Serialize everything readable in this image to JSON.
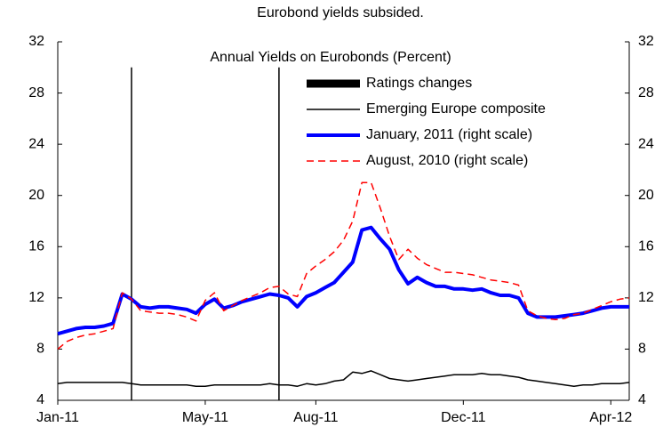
{
  "chart_data": {
    "type": "line",
    "title": "Eurobond yields subsided.",
    "subtitle": "Annual Yields on Eurobonds (Percent)",
    "categories": [
      "Jan-11",
      null,
      null,
      null,
      null,
      null,
      null,
      null,
      null,
      null,
      null,
      null,
      null,
      null,
      null,
      null,
      "May-11",
      null,
      null,
      null,
      null,
      null,
      null,
      null,
      null,
      null,
      null,
      null,
      "Aug-11",
      null,
      null,
      null,
      null,
      null,
      null,
      null,
      null,
      null,
      null,
      null,
      null,
      null,
      null,
      null,
      "Dec-11",
      null,
      null,
      null,
      null,
      null,
      null,
      null,
      null,
      null,
      null,
      null,
      null,
      null,
      null,
      null,
      "Apr-12",
      null,
      null
    ],
    "ylim": [
      4,
      32
    ],
    "yticks": [
      4,
      8,
      12,
      16,
      20,
      24,
      28,
      32
    ],
    "y2lim": [
      4,
      32
    ],
    "y2ticks": [
      4,
      8,
      12,
      16,
      20,
      24,
      28,
      32
    ],
    "series": [
      {
        "name": "Ratings changes",
        "type": "bar",
        "color": "#000000",
        "values": [
          null,
          null,
          null,
          null,
          null,
          null,
          null,
          null,
          30,
          null,
          null,
          null,
          null,
          null,
          null,
          null,
          null,
          null,
          null,
          null,
          null,
          null,
          null,
          null,
          30,
          null,
          null,
          null,
          null,
          null,
          null,
          null,
          null,
          null,
          null,
          null,
          null,
          null,
          null,
          null,
          null,
          null,
          null,
          null,
          null,
          null,
          null,
          null,
          null,
          null,
          null,
          null,
          null,
          null,
          null,
          null,
          null,
          null,
          null,
          null,
          null,
          null,
          null
        ]
      },
      {
        "name": "Emerging Europe composite",
        "type": "line",
        "color": "#000000",
        "width": 1.5,
        "values": [
          5.3,
          5.4,
          5.4,
          5.4,
          5.4,
          5.4,
          5.4,
          5.4,
          5.3,
          5.2,
          5.2,
          5.2,
          5.2,
          5.2,
          5.2,
          5.1,
          5.1,
          5.2,
          5.2,
          5.2,
          5.2,
          5.2,
          5.2,
          5.3,
          5.2,
          5.2,
          5.1,
          5.3,
          5.2,
          5.3,
          5.5,
          5.6,
          6.2,
          6.1,
          6.3,
          6.0,
          5.7,
          5.6,
          5.5,
          5.6,
          5.7,
          5.8,
          5.9,
          6.0,
          6.0,
          6.0,
          6.1,
          6.0,
          6.0,
          5.9,
          5.8,
          5.6,
          5.5,
          5.4,
          5.3,
          5.2,
          5.1,
          5.2,
          5.2,
          5.3,
          5.3,
          5.3,
          5.4
        ]
      },
      {
        "name": "January, 2011 (right scale)",
        "type": "line",
        "axis": "y2",
        "color": "#0000ff",
        "width": 4,
        "values": [
          9.2,
          9.4,
          9.6,
          9.7,
          9.7,
          9.8,
          10.0,
          12.3,
          11.9,
          11.3,
          11.2,
          11.3,
          11.3,
          11.2,
          11.1,
          10.8,
          11.5,
          11.9,
          11.2,
          11.4,
          11.7,
          11.9,
          12.1,
          12.3,
          12.2,
          12.0,
          11.3,
          12.1,
          12.4,
          12.8,
          13.2,
          14.0,
          14.8,
          17.3,
          17.5,
          16.6,
          15.8,
          14.2,
          13.1,
          13.6,
          13.2,
          12.9,
          12.9,
          12.7,
          12.7,
          12.6,
          12.7,
          12.4,
          12.2,
          12.2,
          12.0,
          10.8,
          10.5,
          10.5,
          10.5,
          10.6,
          10.7,
          10.8,
          11.0,
          11.2,
          11.3,
          11.3,
          11.3
        ]
      },
      {
        "name": "August, 2010 (right scale)",
        "type": "line",
        "axis": "y2",
        "color": "#ff0000",
        "width": 1.5,
        "dashed": true,
        "values": [
          8.0,
          8.6,
          8.9,
          9.1,
          9.2,
          9.4,
          9.6,
          12.4,
          11.9,
          11.0,
          10.9,
          10.8,
          10.8,
          10.7,
          10.5,
          10.2,
          11.8,
          12.4,
          11.0,
          11.4,
          11.8,
          12.1,
          12.4,
          12.8,
          12.9,
          12.3,
          12.1,
          13.9,
          14.5,
          15.0,
          15.6,
          16.5,
          18.0,
          21.0,
          21.0,
          19.0,
          16.8,
          15.0,
          15.8,
          15.1,
          14.6,
          14.3,
          14.0,
          14.0,
          13.9,
          13.8,
          13.6,
          13.4,
          13.3,
          13.2,
          13.0,
          11.0,
          10.6,
          10.4,
          10.3,
          10.4,
          10.7,
          10.8,
          11.1,
          11.4,
          11.7,
          11.9,
          12.0
        ]
      }
    ]
  }
}
